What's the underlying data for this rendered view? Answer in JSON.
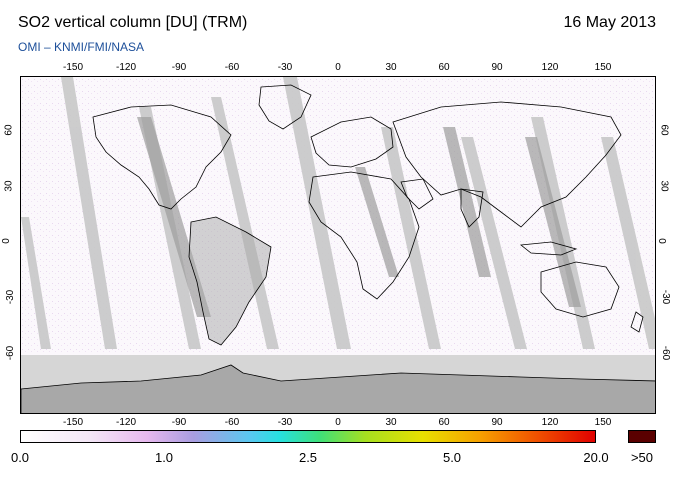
{
  "header": {
    "title": "SO2 vertical column [DU] (TRM)",
    "date": "16 May 2013",
    "subtitle": "OMI  –  KNMI/FMI/NASA"
  },
  "axes": {
    "lon_top": [
      "-150",
      "-120",
      "-90",
      "-60",
      "-30",
      "0",
      "30",
      "60",
      "90",
      "120",
      "150"
    ],
    "lon_bottom": [
      "-150",
      "-120",
      "-90",
      "-60",
      "-30",
      "0",
      "30",
      "60",
      "90",
      "120",
      "150"
    ],
    "lat_left": [
      "60",
      "30",
      "0",
      "-30",
      "-60"
    ],
    "lat_right": [
      "60",
      "30",
      "0",
      "-30",
      "-60"
    ]
  },
  "colorbar": {
    "labels": [
      "0.0",
      "1.0",
      "2.5",
      "5.0",
      "20.0"
    ],
    "overflow_label": ">50",
    "overflow_color": "#5a0000"
  },
  "colors": {
    "orbit_gap": "#c8c8c8",
    "land": "#a8a8a8",
    "polar_mask": "#d6d6d6"
  }
}
